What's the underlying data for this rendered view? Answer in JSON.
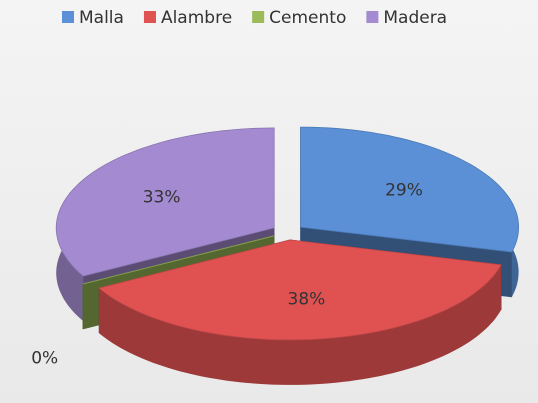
{
  "chart_data": {
    "type": "pie3d",
    "categories": [
      "Malla",
      "Alambre",
      "Cemento",
      "Madera"
    ],
    "values": [
      29,
      38,
      0,
      33
    ],
    "value_labels": [
      "29%",
      "38%",
      "0%",
      "33%"
    ],
    "colors": [
      "#5b8fd6",
      "#e05252",
      "#9bbb59",
      "#a48ad0"
    ],
    "legend": "top"
  }
}
